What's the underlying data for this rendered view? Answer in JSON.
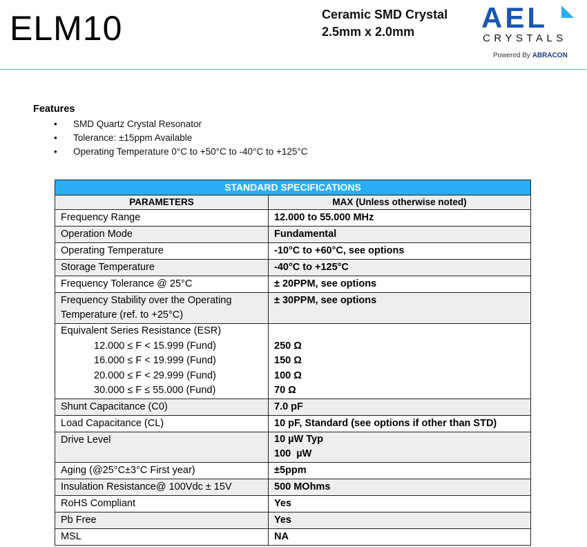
{
  "header": {
    "title": "ELM10",
    "subtitle_line1": "Ceramic SMD Crystal",
    "subtitle_line2": "2.5mm x 2.0mm",
    "logo": {
      "brand": "AEL",
      "tagline": "CRYSTALS",
      "powered_by": "Powered By ABRACON"
    },
    "colors": {
      "brand_blue": "#1a56b0",
      "light_blue": "#29aef5"
    }
  },
  "features": {
    "heading": "Features",
    "items": [
      "SMD Quartz Crystal Resonator",
      "Tolerance: ±15ppm Available",
      "Operating Temperature 0°C to +50°C to -40°C to +125°C"
    ]
  },
  "table": {
    "title": "STANDARD SPECIFICATIONS",
    "col_param": "PARAMETERS",
    "col_value": "MAX (Unless otherwise noted)",
    "rows": [
      {
        "param": "Frequency Range",
        "value": "12.000 to 55.000 MHz"
      },
      {
        "param": "Operation Mode",
        "value": "Fundamental"
      },
      {
        "param": "Operating Temperature",
        "value": "-10°C to +60°C, see options"
      },
      {
        "param": "Storage Temperature",
        "value": "-40°C to +125°C"
      },
      {
        "param": "Frequency Tolerance @ 25°C",
        "value": "± 20PPM, see options"
      },
      {
        "param": "Frequency Stability over the Operating Temperature (ref. to +25°C)",
        "value": "± 30PPM, see options"
      }
    ],
    "esr": {
      "param": "Equivalent Series Resistance (ESR)",
      "ranges": [
        {
          "range": "12.000 ≤ F < 15.999 (Fund)",
          "value": "250 Ω"
        },
        {
          "range": "16.000 ≤ F < 19.999 (Fund)",
          "value": "150 Ω"
        },
        {
          "range": "20.000 ≤ F < 29.999 (Fund)",
          "value": "100 Ω"
        },
        {
          "range": "30.000 ≤ F ≤ 55.000 (Fund)",
          "value": "70 Ω"
        }
      ]
    },
    "rows2": [
      {
        "param": "Shunt Capacitance (C0)",
        "value": "7.0 pF"
      },
      {
        "param": "Load Capacitance (CL)",
        "value": "10 pF, Standard (see options if other than STD)"
      }
    ],
    "drive": {
      "param": "Drive Level",
      "value1": "10 µW Typ",
      "value2": "100  µW"
    },
    "rows3": [
      {
        "param": "Aging (@25°C±3°C First year)",
        "value": "±5ppm"
      },
      {
        "param": "Insulation Resistance@ 100Vdc ± 15V",
        "value": "500 MOhms"
      },
      {
        "param": "RoHS Compliant",
        "value": "Yes"
      },
      {
        "param": "Pb Free",
        "value": "Yes"
      },
      {
        "param": "MSL",
        "value": "NA"
      }
    ]
  }
}
